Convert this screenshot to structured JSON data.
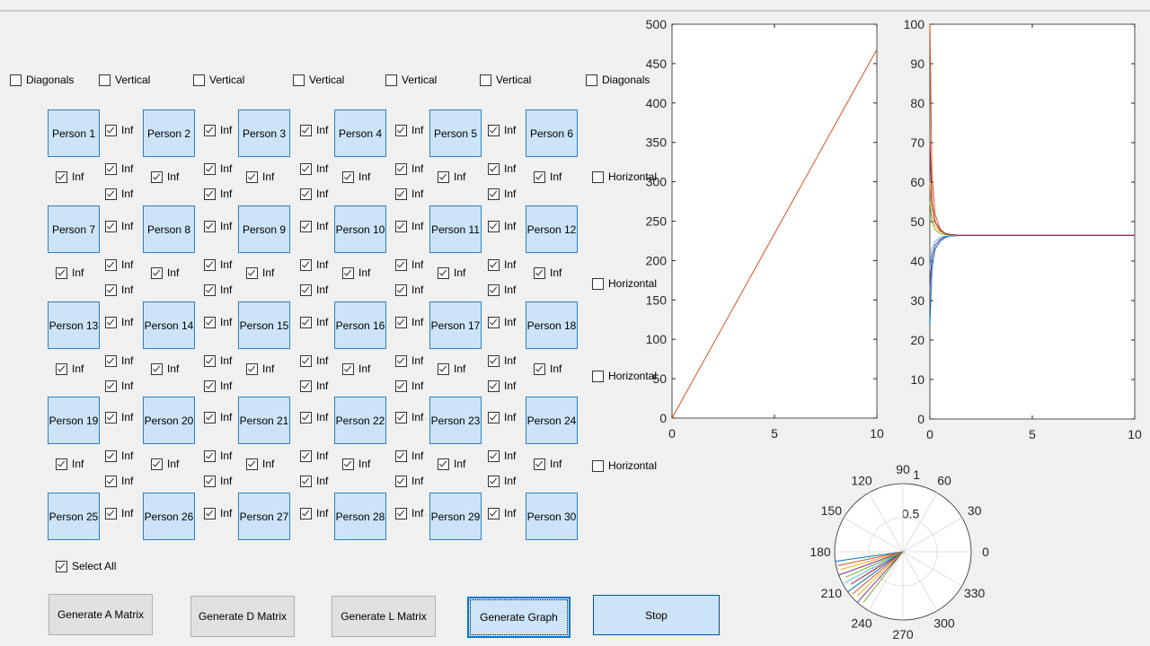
{
  "top_options": {
    "labels": [
      "Diagonals",
      "Vertical",
      "Vertical",
      "Vertical",
      "Vertical",
      "Vertical",
      "Diagonals"
    ],
    "checked": false
  },
  "persons": [
    "Person 1",
    "Person 2",
    "Person 3",
    "Person 4",
    "Person 5",
    "Person 6",
    "Person 7",
    "Person 8",
    "Person 9",
    "Person 10",
    "Person 11",
    "Person 12",
    "Person 13",
    "Person 14",
    "Person 15",
    "Person 16",
    "Person 17",
    "Person 18",
    "Person 19",
    "Person 20",
    "Person 21",
    "Person 22",
    "Person 23",
    "Person 24",
    "Person 25",
    "Person 26",
    "Person 27",
    "Person 28",
    "Person 29",
    "Person 30"
  ],
  "link_option": {
    "label": "Inf",
    "checked": true
  },
  "horizontal_options": {
    "labels": [
      "Horizontal",
      "Horizontal",
      "Horizontal",
      "Horizontal"
    ],
    "checked": false
  },
  "select_all": {
    "label": "Select All",
    "checked": true
  },
  "buttons": [
    "Generate A Matrix",
    "Generate D Matrix",
    "Generate L Matrix",
    "Generate Graph",
    "Stop"
  ],
  "charts": [
    {
      "type": "line",
      "xlim": [
        0,
        10
      ],
      "ylim": [
        0,
        500
      ],
      "xticks": [
        0,
        5,
        10
      ],
      "yticks": [
        0,
        50,
        100,
        150,
        200,
        250,
        300,
        350,
        400,
        450,
        500
      ],
      "x": [
        0,
        10
      ],
      "series": [
        {
          "color": "#d95319",
          "values": [
            0,
            468
          ]
        }
      ]
    },
    {
      "type": "line",
      "xlim": [
        0,
        10
      ],
      "ylim": [
        0,
        100
      ],
      "xticks": [
        0,
        5,
        10
      ],
      "yticks": [
        0,
        10,
        20,
        30,
        40,
        50,
        60,
        70,
        80,
        90,
        100
      ],
      "x": [
        0,
        0.1,
        0.25,
        0.5,
        0.75,
        1,
        1.5,
        2,
        10
      ],
      "series": [
        {
          "color": "#0072bd",
          "values": [
            24,
            38,
            43,
            45,
            46,
            46.3,
            46.5,
            46.5,
            46.5
          ]
        },
        {
          "color": "#d95319",
          "values": [
            100,
            62,
            52,
            48,
            47,
            46.7,
            46.5,
            46.5,
            46.5
          ]
        },
        {
          "color": "#edb120",
          "values": [
            60,
            52,
            49,
            47.5,
            46.8,
            46.6,
            46.5,
            46.5,
            46.5
          ]
        },
        {
          "color": "#7e2f8e",
          "values": [
            33,
            41,
            44,
            45.5,
            46.2,
            46.4,
            46.5,
            46.5,
            46.5
          ]
        },
        {
          "color": "#77ac30",
          "values": [
            55,
            50,
            48,
            47,
            46.7,
            46.6,
            46.5,
            46.5,
            46.5
          ]
        },
        {
          "color": "#4dbeee",
          "values": [
            38,
            43,
            45,
            46,
            46.3,
            46.4,
            46.5,
            46.5,
            46.5
          ]
        },
        {
          "color": "#a2142f",
          "values": [
            70,
            55,
            50,
            47.8,
            47,
            46.7,
            46.5,
            46.5,
            46.5
          ]
        }
      ]
    },
    {
      "type": "polar",
      "rlim": [
        0,
        1
      ],
      "rticks": [
        0.5,
        1
      ],
      "thetaticks": [
        0,
        30,
        60,
        90,
        120,
        150,
        180,
        210,
        240,
        270,
        300,
        330
      ],
      "theta": [
        188,
        192,
        196,
        200,
        204,
        208,
        212,
        216,
        220,
        224,
        228,
        232
      ],
      "r": [
        1,
        0.97,
        0.95,
        1,
        0.92,
        0.98,
        0.9,
        1,
        0.96,
        0.93,
        0.99,
        0.94
      ],
      "colors": [
        "#0072bd",
        "#d95319",
        "#edb120",
        "#7e2f8e",
        "#77ac30",
        "#4dbeee",
        "#a2142f",
        "#0072bd",
        "#d95319",
        "#edb120",
        "#7e2f8e",
        "#77ac30"
      ]
    }
  ]
}
